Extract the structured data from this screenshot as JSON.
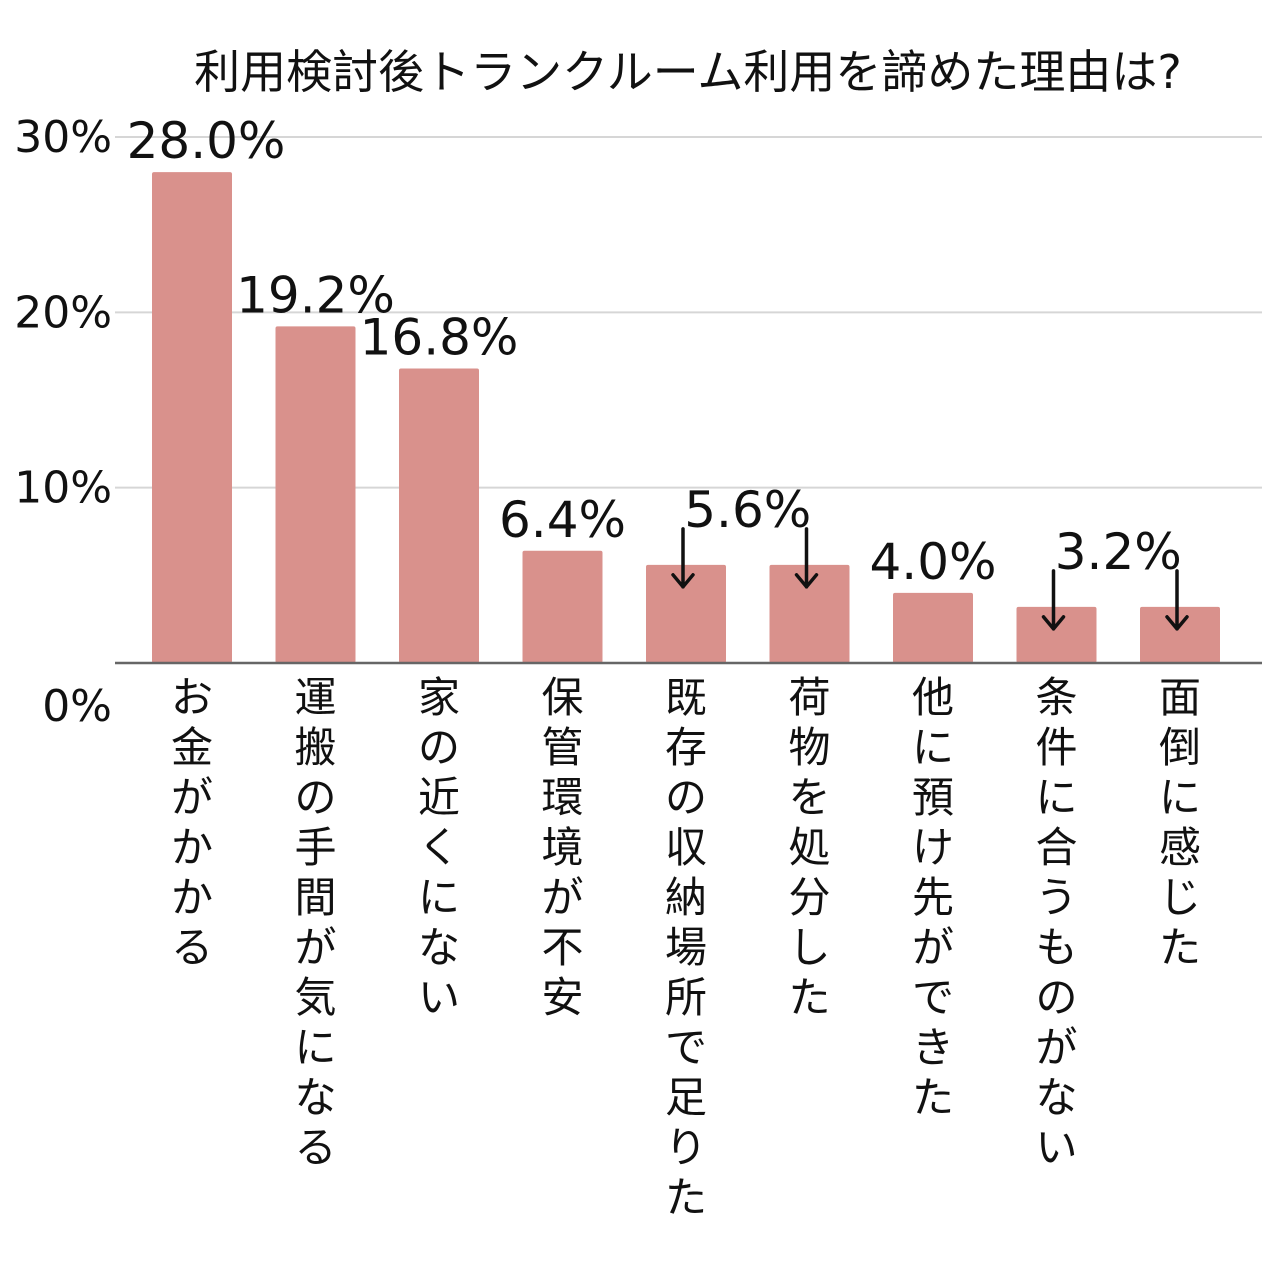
{
  "chart_data": {
    "type": "bar",
    "title": "利用検討後トランクルーム利用を諦めた理由は?",
    "categories": [
      "お金がかかる",
      "運搬の手間が気になる",
      "家の近くにない",
      "保管環境が不安",
      "既存の収納場所で足りた",
      "荷物を処分した",
      "他に預け先ができた",
      "条件に合うものがない",
      "面倒に感じた"
    ],
    "values": [
      28.0,
      19.2,
      16.8,
      6.4,
      5.6,
      5.6,
      4.0,
      3.2,
      3.2
    ],
    "value_labels": [
      "28.0%",
      "19.2%",
      "16.8%",
      "6.4%",
      "5.6%",
      "",
      "4.0%",
      "3.2%",
      ""
    ],
    "shared_label_arrows": [
      [
        4,
        5
      ],
      [
        7,
        8
      ]
    ],
    "ylim": [
      0,
      30
    ],
    "yticks": [
      0,
      10,
      20,
      30
    ],
    "ytick_labels": [
      "0%",
      "10%",
      "20%",
      "30%"
    ],
    "grid": true,
    "bar_color": "#d9918c"
  }
}
